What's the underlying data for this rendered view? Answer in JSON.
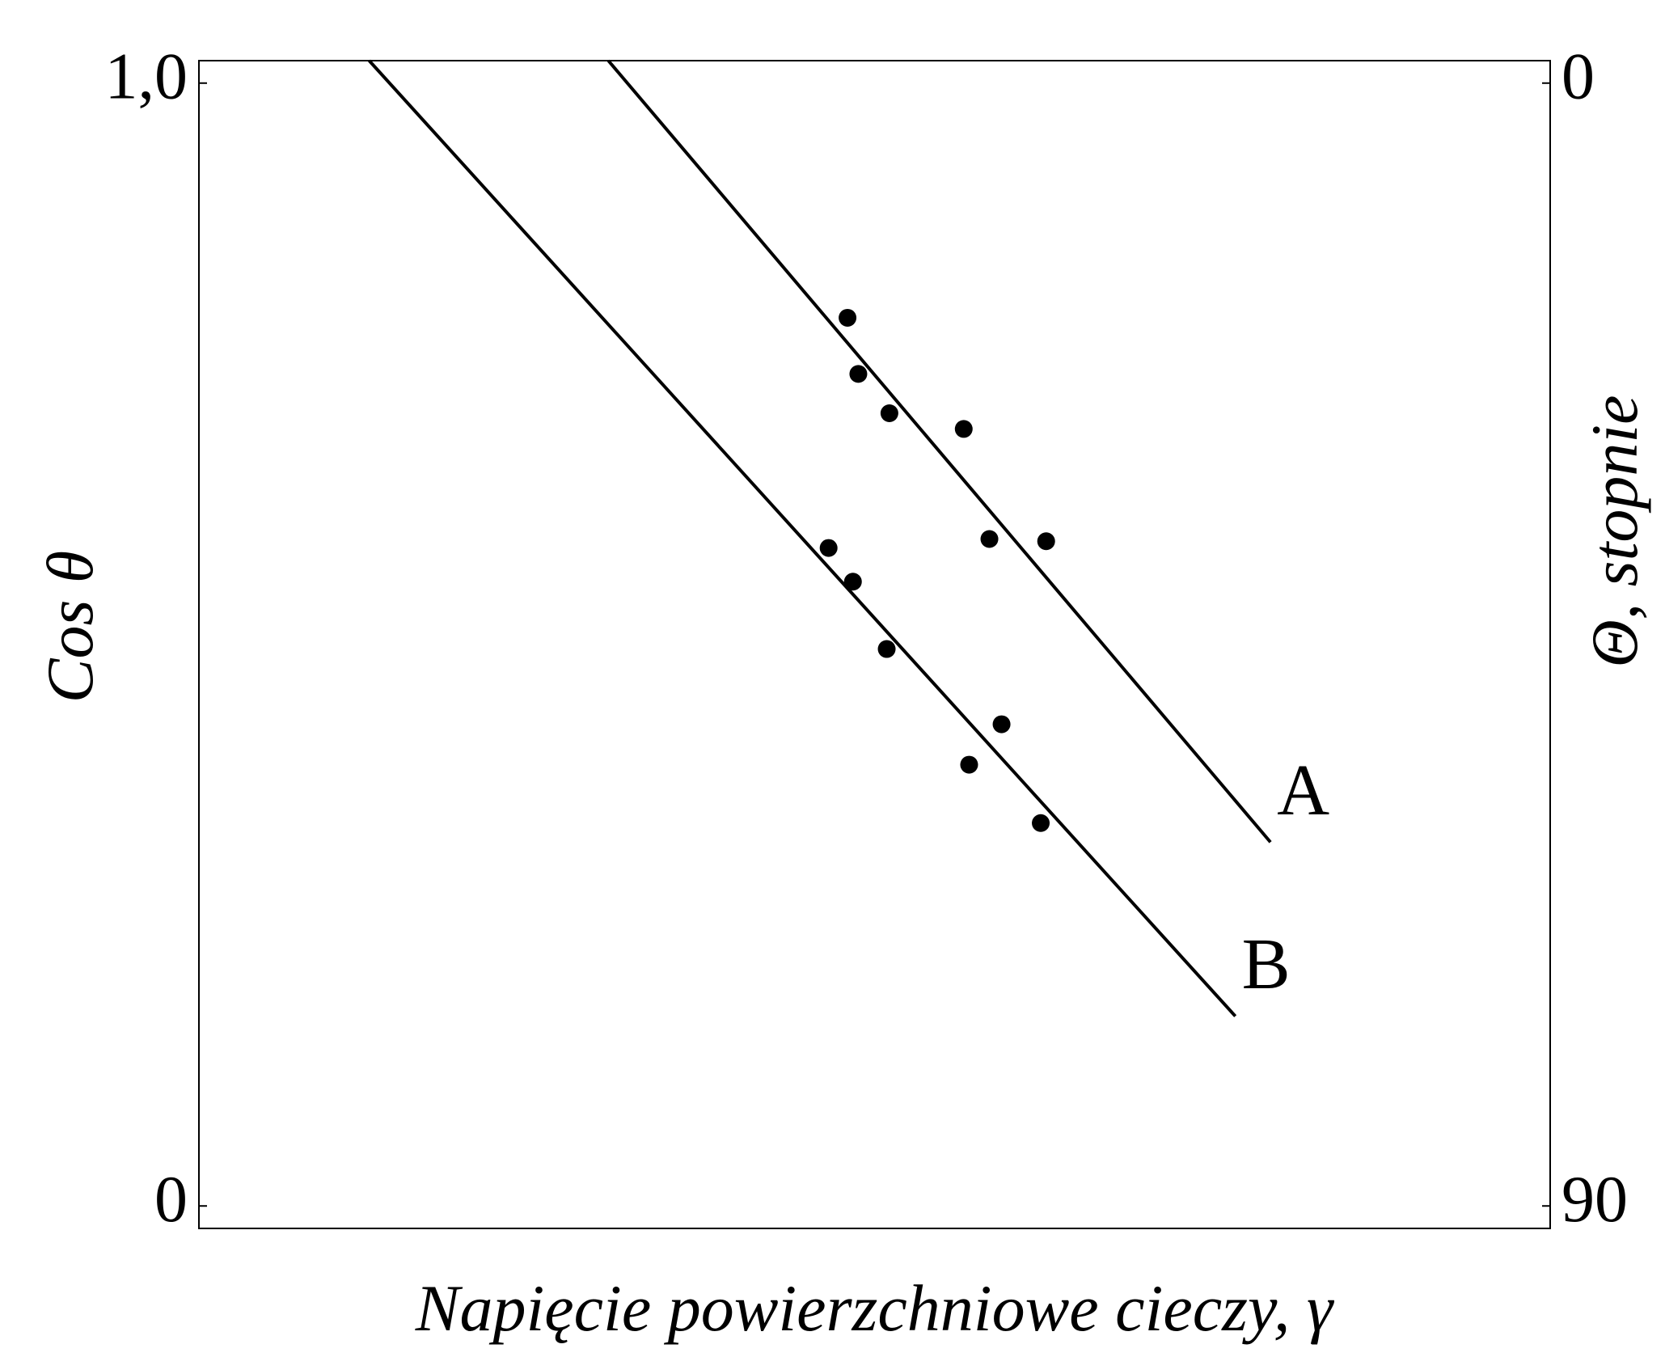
{
  "chart_data": {
    "type": "line",
    "x_label": "Napięcie powierzchniowe cieczy, γ",
    "y_label": "Cos θ",
    "y2_label": "Θ, stopnie",
    "xlim": [
      0,
      1
    ],
    "ylim": [
      -0.02,
      1.02
    ],
    "yticks": [
      {
        "value": 1,
        "label": "1,0"
      },
      0
    ],
    "y2lim": [
      91.8,
      -1.8
    ],
    "y2ticks": [
      0,
      90
    ],
    "series": [
      {
        "name": "A",
        "kind": "line",
        "color": "#000000",
        "x": [
          0.303,
          0.793
        ],
        "values": [
          1.02,
          0.324
        ]
      },
      {
        "name": "B",
        "kind": "line",
        "color": "#000000",
        "x": [
          0.126,
          0.767
        ],
        "values": [
          1.02,
          0.169
        ]
      },
      {
        "kind": "scatter",
        "color": "#000000",
        "x": [
          0.48,
          0.488,
          0.511,
          0.566,
          0.585,
          0.627
        ],
        "values": [
          0.791,
          0.741,
          0.706,
          0.692,
          0.594,
          0.592
        ]
      },
      {
        "kind": "scatter",
        "color": "#000000",
        "x": [
          0.466,
          0.484,
          0.509,
          0.594,
          0.57,
          0.623
        ],
        "values": [
          0.586,
          0.556,
          0.496,
          0.429,
          0.393,
          0.341
        ]
      }
    ]
  }
}
